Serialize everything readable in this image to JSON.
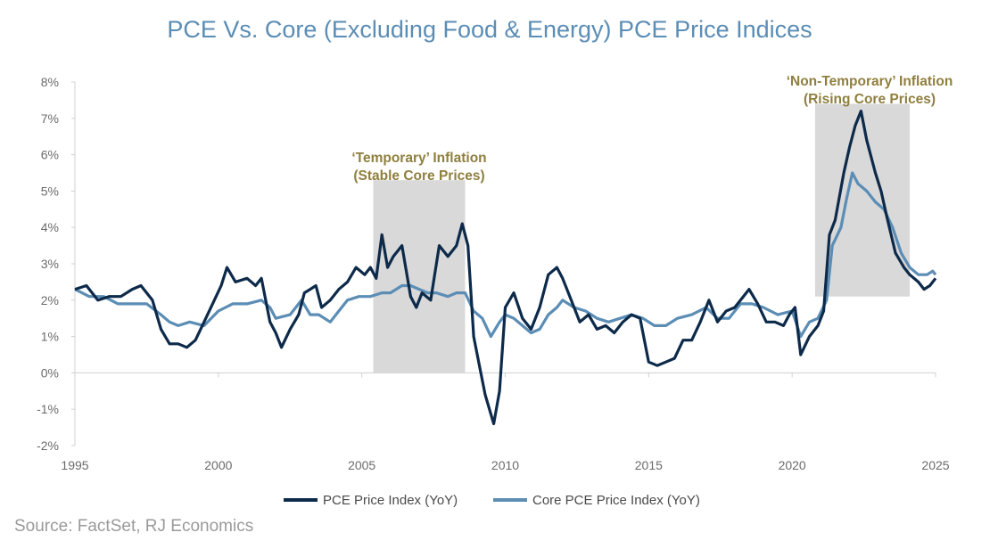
{
  "title": "PCE Vs. Core (Excluding Food & Energy) PCE Price Indices",
  "source": "Source: FactSet, RJ Economics",
  "colors": {
    "pce": "#0d2a4a",
    "core": "#5b8db5",
    "shade": "#d9d9d9",
    "annotation": "#8f7f3e"
  },
  "chart_data": {
    "type": "line",
    "title": "PCE Vs. Core (Excluding Food & Energy) PCE Price Indices",
    "xlabel": "",
    "ylabel": "",
    "xlim": [
      1995,
      2025
    ],
    "ylim": [
      -2,
      8
    ],
    "x_ticks": [
      "1995",
      "2000",
      "2005",
      "2010",
      "2015",
      "2020",
      "2025"
    ],
    "y_ticks": [
      "-2%",
      "-1%",
      "0%",
      "1%",
      "2%",
      "3%",
      "4%",
      "5%",
      "6%",
      "7%",
      "8%"
    ],
    "grid": false,
    "legend_position": "bottom",
    "series": [
      {
        "name": "PCE Price Index (YoY)",
        "color": "#0d2a4a",
        "points": [
          [
            1995,
            2.3
          ],
          [
            1995.4,
            2.4
          ],
          [
            1995.8,
            2.0
          ],
          [
            1996.2,
            2.1
          ],
          [
            1996.6,
            2.1
          ],
          [
            1997,
            2.3
          ],
          [
            1997.3,
            2.4
          ],
          [
            1997.7,
            2.0
          ],
          [
            1998,
            1.2
          ],
          [
            1998.3,
            0.8
          ],
          [
            1998.6,
            0.8
          ],
          [
            1998.9,
            0.7
          ],
          [
            1999.2,
            0.9
          ],
          [
            1999.5,
            1.4
          ],
          [
            1999.8,
            1.9
          ],
          [
            2000.1,
            2.4
          ],
          [
            2000.3,
            2.9
          ],
          [
            2000.6,
            2.5
          ],
          [
            2001,
            2.6
          ],
          [
            2001.3,
            2.4
          ],
          [
            2001.5,
            2.6
          ],
          [
            2001.8,
            1.4
          ],
          [
            2002,
            1.1
          ],
          [
            2002.2,
            0.7
          ],
          [
            2002.5,
            1.2
          ],
          [
            2002.8,
            1.6
          ],
          [
            2003,
            2.2
          ],
          [
            2003.2,
            2.3
          ],
          [
            2003.4,
            2.4
          ],
          [
            2003.6,
            1.8
          ],
          [
            2003.9,
            2.0
          ],
          [
            2004.2,
            2.3
          ],
          [
            2004.5,
            2.5
          ],
          [
            2004.8,
            2.9
          ],
          [
            2005.1,
            2.7
          ],
          [
            2005.3,
            2.9
          ],
          [
            2005.5,
            2.6
          ],
          [
            2005.7,
            3.8
          ],
          [
            2005.9,
            2.9
          ],
          [
            2006.1,
            3.2
          ],
          [
            2006.4,
            3.5
          ],
          [
            2006.7,
            2.1
          ],
          [
            2006.9,
            1.8
          ],
          [
            2007.1,
            2.2
          ],
          [
            2007.4,
            2.0
          ],
          [
            2007.7,
            3.5
          ],
          [
            2008,
            3.2
          ],
          [
            2008.3,
            3.5
          ],
          [
            2008.5,
            4.1
          ],
          [
            2008.7,
            3.5
          ],
          [
            2008.9,
            1.0
          ],
          [
            2009.1,
            0.2
          ],
          [
            2009.3,
            -0.6
          ],
          [
            2009.6,
            -1.4
          ],
          [
            2009.8,
            -0.5
          ],
          [
            2010,
            1.8
          ],
          [
            2010.3,
            2.2
          ],
          [
            2010.6,
            1.5
          ],
          [
            2010.9,
            1.2
          ],
          [
            2011.2,
            1.8
          ],
          [
            2011.5,
            2.7
          ],
          [
            2011.8,
            2.9
          ],
          [
            2012,
            2.6
          ],
          [
            2012.3,
            2.0
          ],
          [
            2012.6,
            1.4
          ],
          [
            2012.9,
            1.6
          ],
          [
            2013.2,
            1.2
          ],
          [
            2013.5,
            1.3
          ],
          [
            2013.8,
            1.1
          ],
          [
            2014.1,
            1.4
          ],
          [
            2014.4,
            1.6
          ],
          [
            2014.7,
            1.5
          ],
          [
            2015,
            0.3
          ],
          [
            2015.3,
            0.2
          ],
          [
            2015.6,
            0.3
          ],
          [
            2015.9,
            0.4
          ],
          [
            2016.2,
            0.9
          ],
          [
            2016.5,
            0.9
          ],
          [
            2016.8,
            1.4
          ],
          [
            2017.1,
            2.0
          ],
          [
            2017.4,
            1.4
          ],
          [
            2017.7,
            1.7
          ],
          [
            2018,
            1.8
          ],
          [
            2018.3,
            2.1
          ],
          [
            2018.5,
            2.3
          ],
          [
            2018.8,
            1.9
          ],
          [
            2019.1,
            1.4
          ],
          [
            2019.4,
            1.4
          ],
          [
            2019.7,
            1.3
          ],
          [
            2019.9,
            1.6
          ],
          [
            2020.1,
            1.8
          ],
          [
            2020.3,
            0.5
          ],
          [
            2020.6,
            1.0
          ],
          [
            2020.9,
            1.3
          ],
          [
            2021.1,
            1.7
          ],
          [
            2021.3,
            3.8
          ],
          [
            2021.5,
            4.2
          ],
          [
            2021.8,
            5.5
          ],
          [
            2022,
            6.2
          ],
          [
            2022.2,
            6.8
          ],
          [
            2022.4,
            7.2
          ],
          [
            2022.6,
            6.4
          ],
          [
            2022.9,
            5.5
          ],
          [
            2023.1,
            5.0
          ],
          [
            2023.3,
            4.3
          ],
          [
            2023.6,
            3.3
          ],
          [
            2023.9,
            2.9
          ],
          [
            2024.1,
            2.7
          ],
          [
            2024.4,
            2.5
          ],
          [
            2024.6,
            2.3
          ],
          [
            2024.8,
            2.4
          ],
          [
            2025,
            2.6
          ]
        ]
      },
      {
        "name": "Core PCE Price Index (YoY)",
        "color": "#5b8db5",
        "points": [
          [
            1995,
            2.3
          ],
          [
            1995.5,
            2.1
          ],
          [
            1996,
            2.1
          ],
          [
            1996.5,
            1.9
          ],
          [
            1997,
            1.9
          ],
          [
            1997.5,
            1.9
          ],
          [
            1998,
            1.6
          ],
          [
            1998.3,
            1.4
          ],
          [
            1998.6,
            1.3
          ],
          [
            1999,
            1.4
          ],
          [
            1999.5,
            1.3
          ],
          [
            2000,
            1.7
          ],
          [
            2000.5,
            1.9
          ],
          [
            2001,
            1.9
          ],
          [
            2001.5,
            2.0
          ],
          [
            2001.8,
            1.8
          ],
          [
            2002,
            1.5
          ],
          [
            2002.5,
            1.6
          ],
          [
            2002.9,
            2.0
          ],
          [
            2003.2,
            1.6
          ],
          [
            2003.5,
            1.6
          ],
          [
            2003.9,
            1.4
          ],
          [
            2004.2,
            1.7
          ],
          [
            2004.5,
            2.0
          ],
          [
            2004.9,
            2.1
          ],
          [
            2005.3,
            2.1
          ],
          [
            2005.7,
            2.2
          ],
          [
            2006,
            2.2
          ],
          [
            2006.4,
            2.4
          ],
          [
            2006.7,
            2.4
          ],
          [
            2007,
            2.3
          ],
          [
            2007.3,
            2.2
          ],
          [
            2007.6,
            2.2
          ],
          [
            2008,
            2.1
          ],
          [
            2008.3,
            2.2
          ],
          [
            2008.6,
            2.2
          ],
          [
            2008.9,
            1.7
          ],
          [
            2009.2,
            1.5
          ],
          [
            2009.5,
            1.0
          ],
          [
            2009.8,
            1.4
          ],
          [
            2010,
            1.6
          ],
          [
            2010.3,
            1.5
          ],
          [
            2010.6,
            1.3
          ],
          [
            2010.9,
            1.1
          ],
          [
            2011.2,
            1.2
          ],
          [
            2011.5,
            1.6
          ],
          [
            2011.8,
            1.8
          ],
          [
            2012,
            2.0
          ],
          [
            2012.4,
            1.8
          ],
          [
            2012.8,
            1.7
          ],
          [
            2013.2,
            1.5
          ],
          [
            2013.6,
            1.4
          ],
          [
            2014,
            1.5
          ],
          [
            2014.4,
            1.6
          ],
          [
            2014.8,
            1.5
          ],
          [
            2015.2,
            1.3
          ],
          [
            2015.6,
            1.3
          ],
          [
            2016,
            1.5
          ],
          [
            2016.5,
            1.6
          ],
          [
            2017,
            1.8
          ],
          [
            2017.4,
            1.5
          ],
          [
            2017.8,
            1.5
          ],
          [
            2018.2,
            1.9
          ],
          [
            2018.6,
            1.9
          ],
          [
            2019,
            1.8
          ],
          [
            2019.5,
            1.6
          ],
          [
            2020,
            1.7
          ],
          [
            2020.3,
            1.0
          ],
          [
            2020.6,
            1.4
          ],
          [
            2020.9,
            1.5
          ],
          [
            2021.2,
            2.0
          ],
          [
            2021.4,
            3.5
          ],
          [
            2021.7,
            4.0
          ],
          [
            2021.9,
            4.8
          ],
          [
            2022.1,
            5.5
          ],
          [
            2022.3,
            5.2
          ],
          [
            2022.6,
            5.0
          ],
          [
            2022.9,
            4.7
          ],
          [
            2023.2,
            4.5
          ],
          [
            2023.5,
            4.0
          ],
          [
            2023.8,
            3.3
          ],
          [
            2024.1,
            2.9
          ],
          [
            2024.4,
            2.7
          ],
          [
            2024.7,
            2.7
          ],
          [
            2024.9,
            2.8
          ],
          [
            2025,
            2.7
          ]
        ]
      }
    ],
    "shaded_regions": [
      {
        "x": [
          2005.4,
          2008.6
        ],
        "y": [
          0,
          5.3
        ]
      },
      {
        "x": [
          2020.8,
          2024.1
        ],
        "y": [
          2.1,
          7.4
        ]
      }
    ],
    "annotations": [
      {
        "lines": [
          "‘Temporary’ Inflation",
          "(Stable Core Prices)"
        ],
        "x": 2007.0,
        "y": 5.8
      },
      {
        "lines": [
          "‘Non-Temporary’ Inflation",
          "(Rising Core Prices)"
        ],
        "x": 2022.7,
        "y": 7.9
      }
    ]
  }
}
